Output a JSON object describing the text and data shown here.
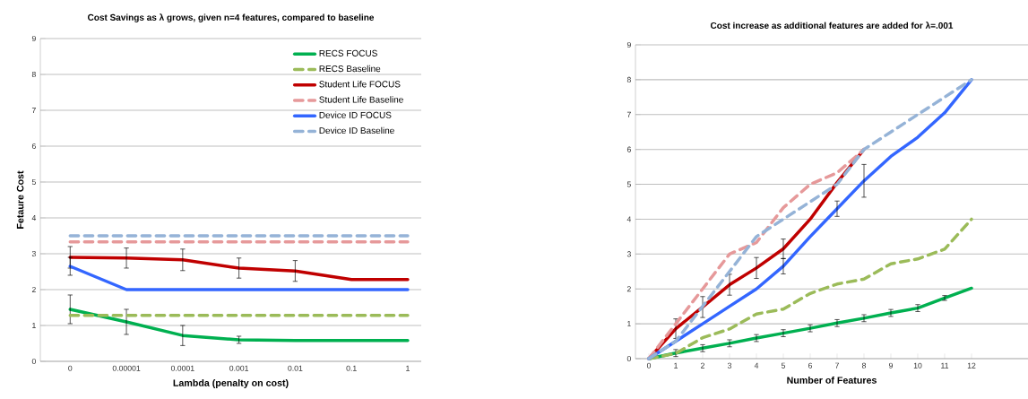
{
  "chart_data": [
    {
      "type": "line",
      "title": "Cost Savings as λ grows, given n=4 features, compared to baseline",
      "xlabel": "Lambda (penalty on cost)",
      "ylabel": "Fetaure Cost",
      "categories": [
        "0",
        "0.00001",
        "0.0001",
        "0.001",
        "0.01",
        "0.1",
        "1"
      ],
      "ylim": [
        0,
        9
      ],
      "yticks": [
        0,
        1,
        2,
        3,
        4,
        5,
        6,
        7,
        8,
        9
      ],
      "grid": "y",
      "legend": "top right",
      "series": [
        {
          "name": "RECS FOCUS",
          "color": "#00b050",
          "line_style": "solid",
          "values": [
            1.45,
            1.1,
            0.72,
            0.6,
            0.58,
            0.58,
            0.58
          ],
          "errors": [
            0.4,
            0.35,
            0.28,
            0.1,
            null,
            null,
            null
          ]
        },
        {
          "name": "RECS Baseline",
          "color": "#9bbb59",
          "line_style": "dashed",
          "values": [
            1.28,
            1.28,
            1.28,
            1.28,
            1.28,
            1.28,
            1.28
          ]
        },
        {
          "name": "Student Life FOCUS",
          "color": "#c00000",
          "line_style": "solid",
          "values": [
            2.9,
            2.88,
            2.83,
            2.6,
            2.52,
            2.28,
            2.28
          ],
          "errors": [
            0.3,
            0.28,
            0.3,
            0.28,
            0.29,
            null,
            null
          ]
        },
        {
          "name": "Student Life Baseline",
          "color": "#e6999a",
          "line_style": "dashed",
          "values": [
            3.33,
            3.33,
            3.33,
            3.33,
            3.33,
            3.33,
            3.33
          ]
        },
        {
          "name": "Device ID FOCUS",
          "color": "#3366ff",
          "line_style": "solid",
          "values": [
            2.65,
            2.0,
            2.0,
            2.0,
            2.0,
            2.0,
            2.0
          ],
          "errors": [
            0.25,
            null,
            null,
            null,
            null,
            null,
            null
          ]
        },
        {
          "name": "Device ID Baseline",
          "color": "#95b3d7",
          "line_style": "dashed",
          "values": [
            3.5,
            3.5,
            3.5,
            3.5,
            3.5,
            3.5,
            3.5
          ]
        }
      ]
    },
    {
      "type": "line",
      "title": "Cost increase as additional features are added for λ=.001",
      "xlabel": "Number of Features",
      "x": [
        0,
        1,
        2,
        3,
        4,
        5,
        6,
        7,
        8,
        9,
        10,
        11,
        12
      ],
      "xlim": [
        -0.5,
        14.1
      ],
      "xticks": [
        0,
        1,
        2,
        3,
        4,
        5,
        6,
        7,
        8,
        9,
        10,
        11,
        12
      ],
      "ylim": [
        0,
        9
      ],
      "yticks": [
        0,
        1,
        2,
        3,
        4,
        5,
        6,
        7,
        8,
        9
      ],
      "grid": "y",
      "series": [
        {
          "color": "#00b050",
          "line_style": "solid",
          "values": [
            0,
            0.16,
            0.3,
            0.44,
            0.59,
            0.73,
            0.87,
            1.02,
            1.16,
            1.31,
            1.45,
            1.74,
            2.02
          ],
          "errors": [
            null,
            0.1,
            0.1,
            0.1,
            0.1,
            0.1,
            0.1,
            0.1,
            0.1,
            0.1,
            0.1,
            0.07,
            null
          ]
        },
        {
          "color": "#9bbb59",
          "line_style": "dashed",
          "values": [
            0,
            0.15,
            0.6,
            0.85,
            1.28,
            1.42,
            1.87,
            2.14,
            2.28,
            2.72,
            2.86,
            3.14,
            4.0
          ]
        },
        {
          "color": "#c00000",
          "line_style": "solid",
          "values": [
            0,
            0.86,
            1.48,
            2.12,
            2.6,
            3.15,
            4.0,
            5.05,
            6.0,
            null,
            null,
            null,
            null
          ],
          "errors": [
            null,
            0.28,
            0.3,
            0.3,
            0.3,
            0.28,
            null,
            null,
            null,
            null,
            null,
            null,
            null
          ]
        },
        {
          "color": "#e6999a",
          "line_style": "dashed",
          "values": [
            0,
            1.0,
            2.0,
            3.0,
            3.33,
            4.33,
            5.0,
            5.33,
            6.0,
            null,
            null,
            null,
            null
          ]
        },
        {
          "color": "#3366ff",
          "line_style": "solid",
          "values": [
            0,
            0.5,
            1.0,
            1.5,
            2.0,
            2.65,
            3.5,
            4.3,
            5.1,
            5.8,
            6.35,
            7.05,
            8.0
          ],
          "errors": [
            null,
            null,
            null,
            null,
            null,
            0.22,
            null,
            0.22,
            0.47,
            null,
            null,
            null,
            null
          ]
        },
        {
          "color": "#95b3d7",
          "line_style": "dashed",
          "values": [
            0,
            0.5,
            1.5,
            2.5,
            3.5,
            4.0,
            4.5,
            5.0,
            6.0,
            6.5,
            7.0,
            7.5,
            8.0
          ]
        }
      ]
    }
  ]
}
